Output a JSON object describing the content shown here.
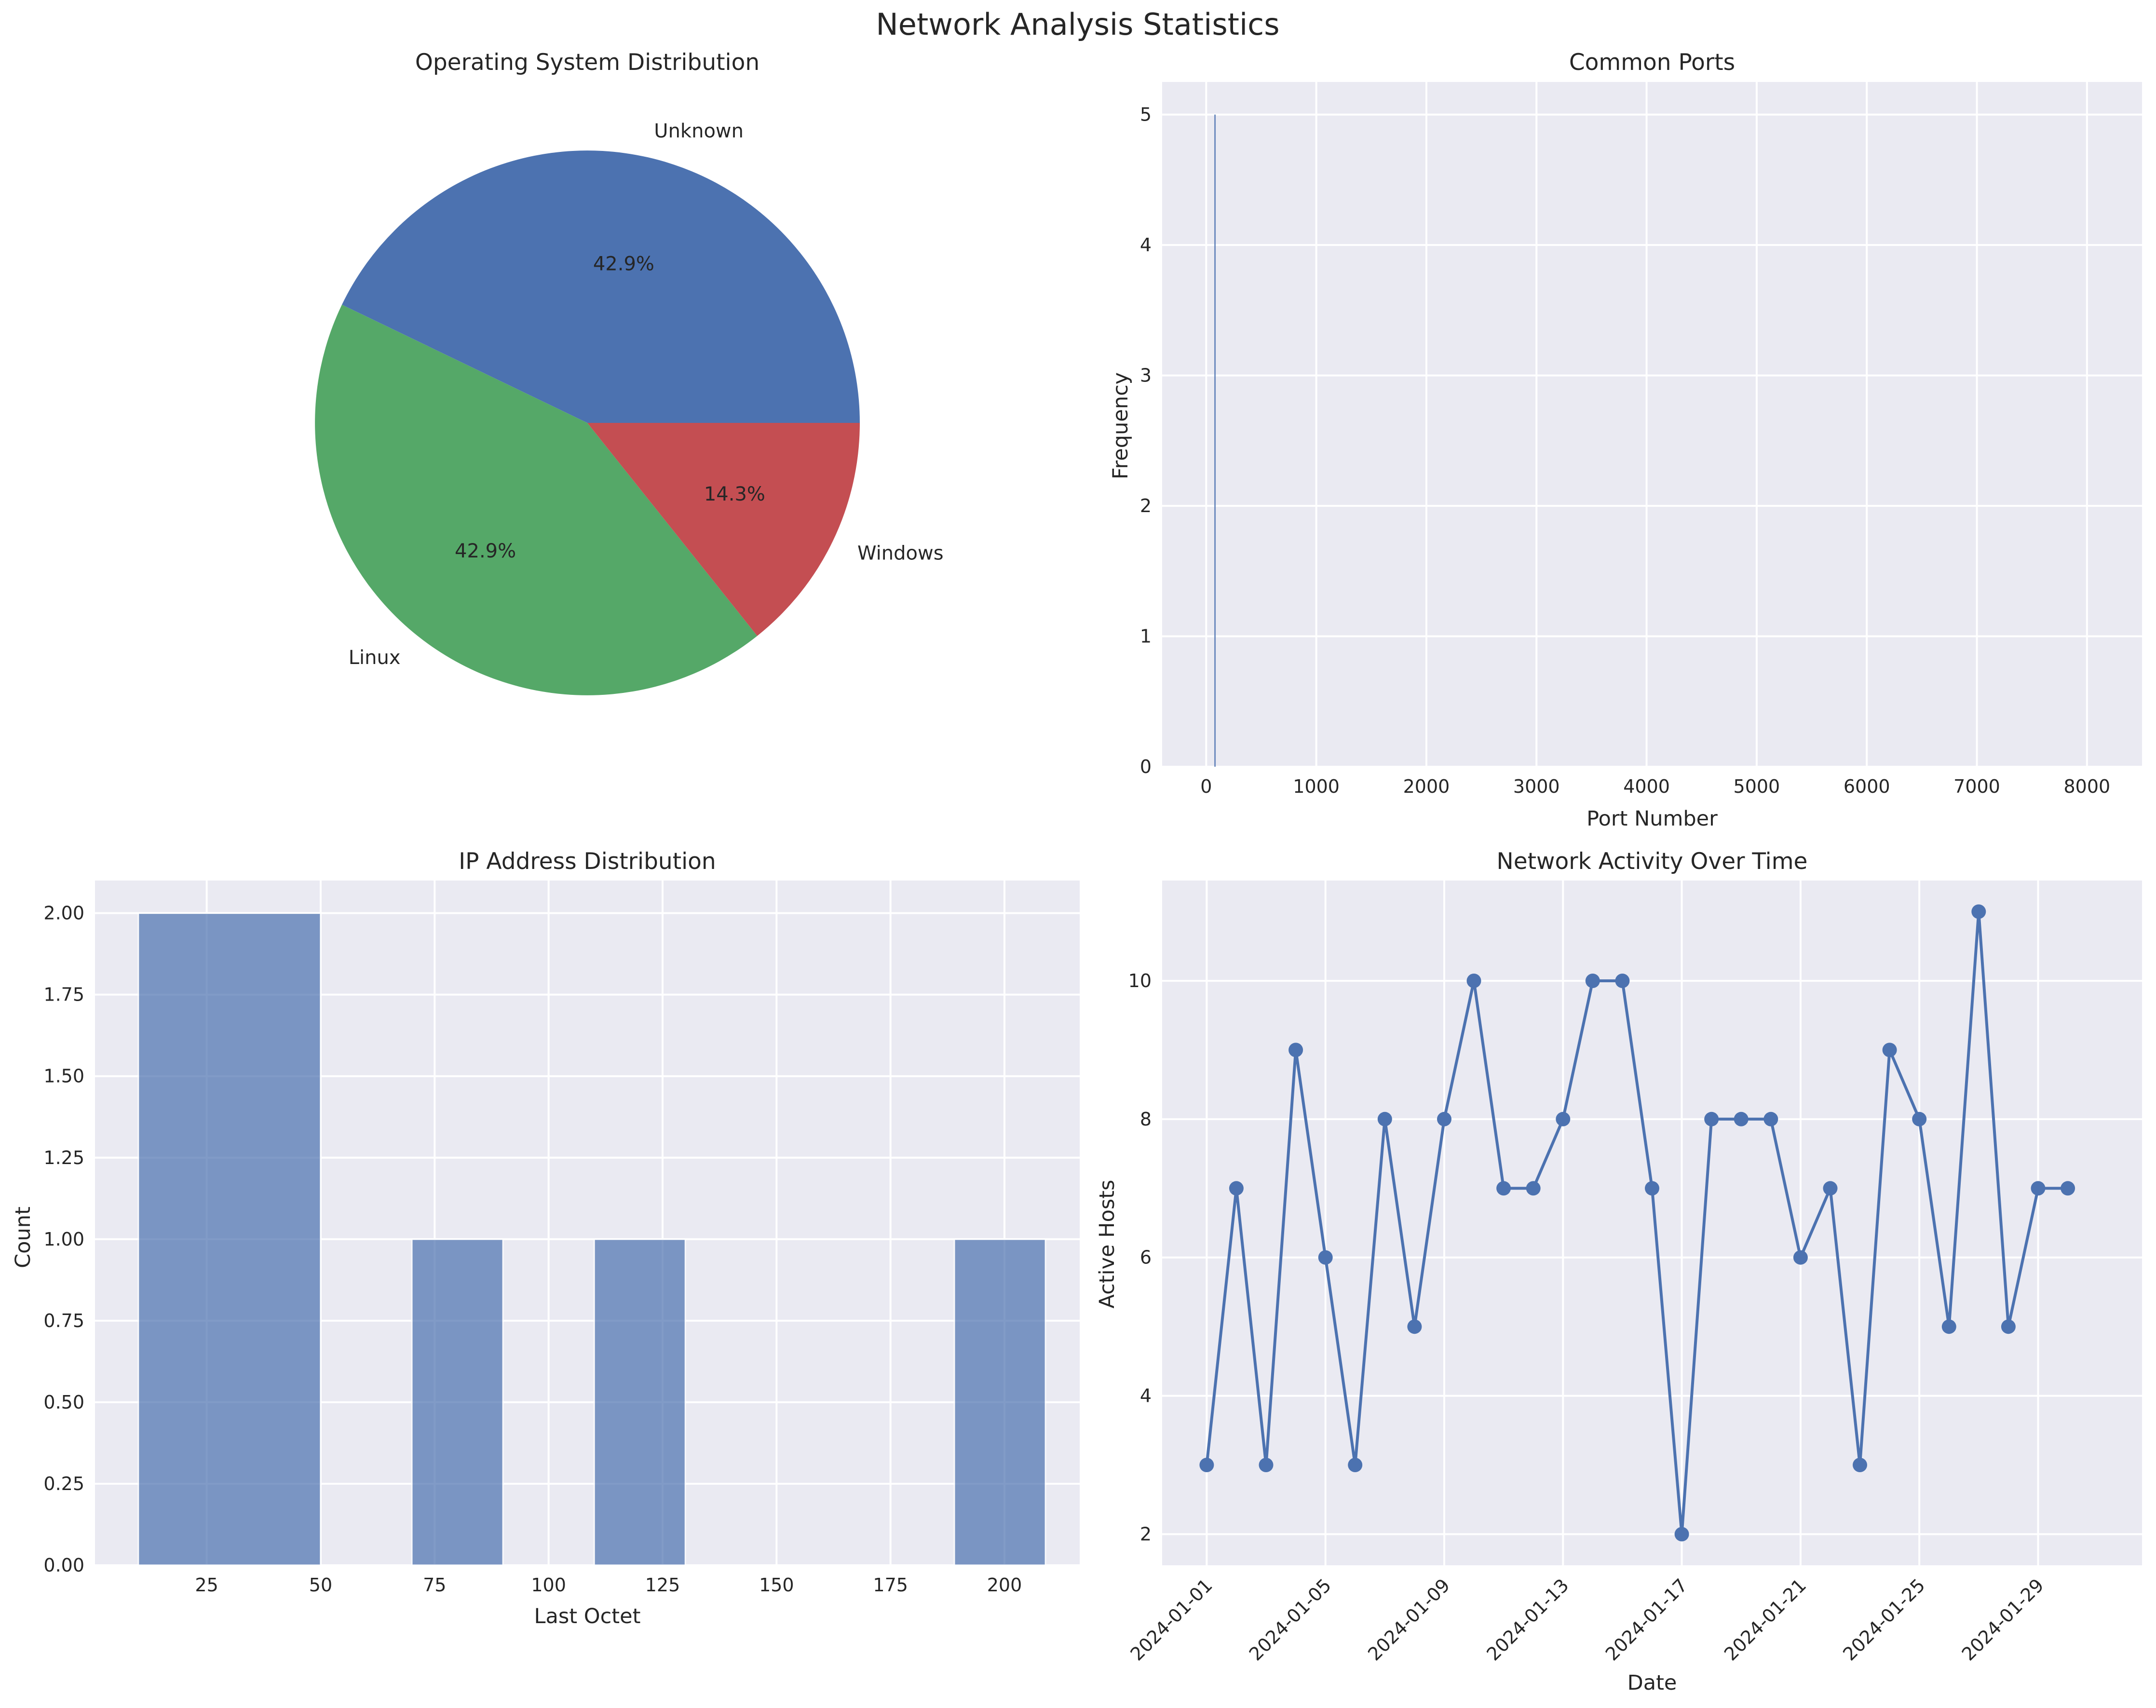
{
  "figure_title": "Network Analysis Statistics",
  "colors": {
    "blue": "#4c72b0",
    "green": "#55a868",
    "red": "#c44e52",
    "axes_bg": "#eaeaf2",
    "text": "#262626"
  },
  "chart_data": [
    {
      "type": "pie",
      "title": "Operating System Distribution",
      "slices": [
        {
          "label": "Unknown",
          "value": 3,
          "pct_label": "42.9%",
          "color": "#4c72b0"
        },
        {
          "label": "Linux",
          "value": 3,
          "pct_label": "42.9%",
          "color": "#55a868"
        },
        {
          "label": "Windows",
          "value": 1,
          "pct_label": "14.3%",
          "color": "#c44e52"
        }
      ]
    },
    {
      "type": "bar",
      "title": "Common Ports",
      "xlabel": "Port Number",
      "ylabel": "Frequency",
      "xlim": [
        -400,
        8500
      ],
      "ylim": [
        0,
        5.25
      ],
      "xticks": [
        0,
        1000,
        2000,
        3000,
        4000,
        5000,
        6000,
        7000,
        8000
      ],
      "yticks": [
        0,
        1,
        2,
        3,
        4,
        5
      ],
      "bars": [
        {
          "x": 80,
          "value": 5
        }
      ]
    },
    {
      "type": "bar",
      "title": "IP Address Distribution",
      "xlabel": "Last Octet",
      "ylabel": "Count",
      "xlim": [
        0.5,
        216.5
      ],
      "ylim": [
        0,
        2.1
      ],
      "xticks": [
        25,
        50,
        75,
        100,
        125,
        150,
        175,
        200
      ],
      "yticks": [
        "0.00",
        "0.25",
        "0.50",
        "0.75",
        "1.00",
        "1.25",
        "1.50",
        "1.75",
        "2.00"
      ],
      "bins": [
        {
          "x0": 10,
          "x1": 50,
          "count": 2
        },
        {
          "x0": 70,
          "x1": 90,
          "count": 1
        },
        {
          "x0": 110,
          "x1": 130,
          "count": 1
        },
        {
          "x0": 189,
          "x1": 209,
          "count": 1
        }
      ]
    },
    {
      "type": "line",
      "title": "Network Activity Over Time",
      "xlabel": "Date",
      "ylabel": "Active Hosts",
      "start_date": "2024-01-01",
      "xlim": [
        -1.5,
        31.5
      ],
      "ylim": [
        1.55,
        11.45
      ],
      "xticks": [
        "2024-01-01",
        "2024-01-05",
        "2024-01-09",
        "2024-01-13",
        "2024-01-17",
        "2024-01-21",
        "2024-01-25",
        "2024-01-29"
      ],
      "yticks": [
        2,
        4,
        6,
        8,
        10
      ],
      "values": [
        3,
        7,
        3,
        9,
        6,
        3,
        8,
        5,
        8,
        10,
        7,
        7,
        8,
        10,
        10,
        7,
        2,
        8,
        8,
        8,
        6,
        7,
        3,
        9,
        8,
        5,
        11,
        5,
        7,
        7
      ]
    }
  ]
}
